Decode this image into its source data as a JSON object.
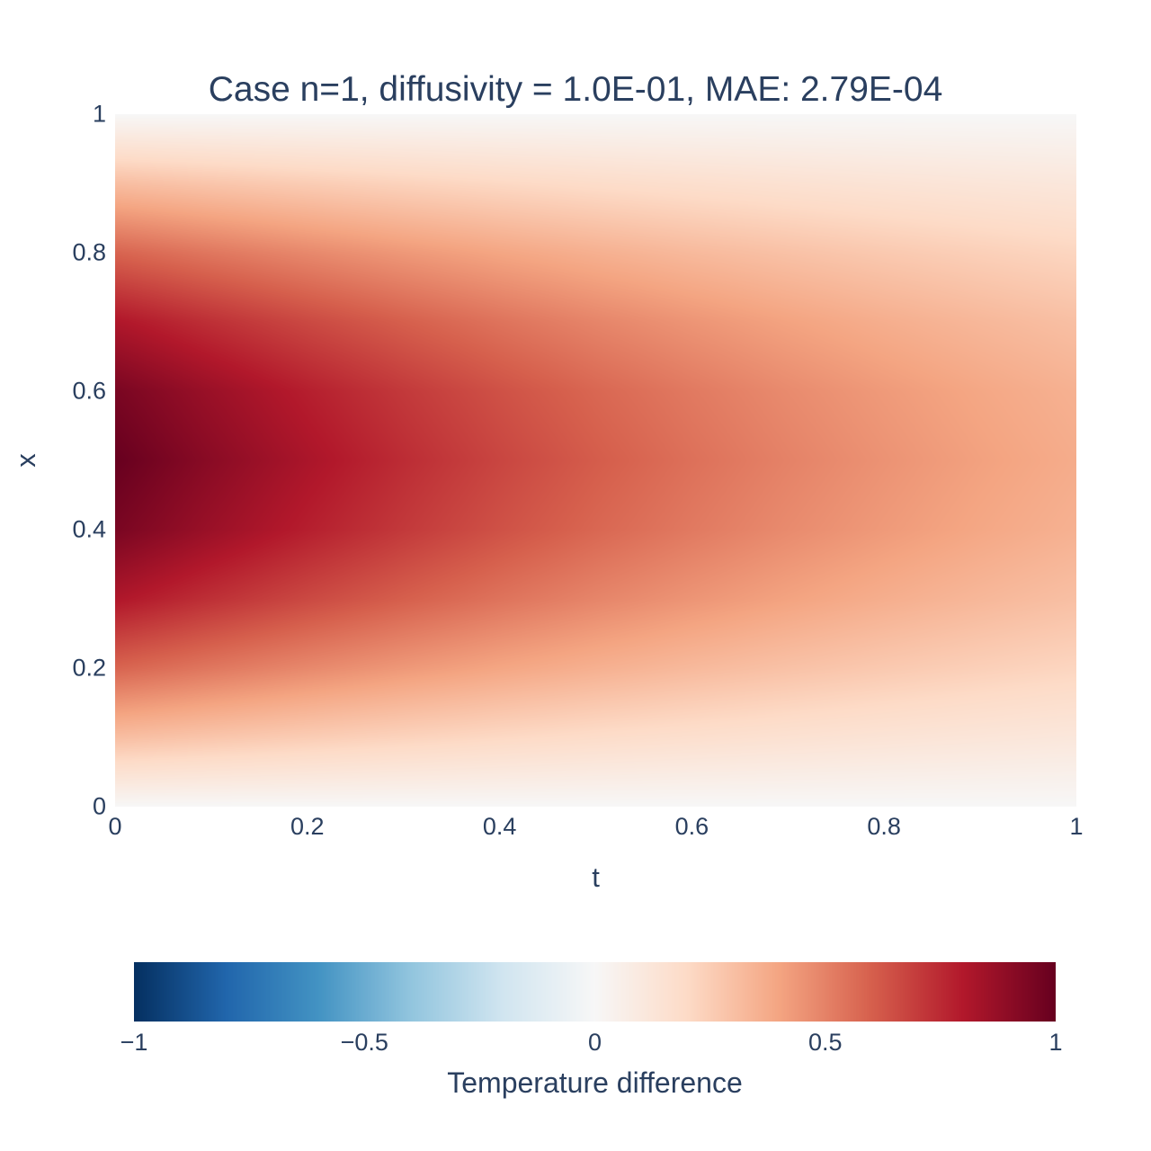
{
  "title": "Case n=1, diffusivity = 1.0E-01, MAE: 2.79E-04",
  "text_color": "#2a3f5f",
  "background_color": "#ffffff",
  "chart_data": {
    "type": "heatmap",
    "title": "Case n=1, diffusivity = 1.0E-01, MAE: 2.79E-04",
    "params": {
      "case_n": "1",
      "diffusivity": "1.0E-01",
      "mae": "2.79E-04"
    },
    "xlabel": "t",
    "ylabel": "x",
    "xlim": [
      0,
      1
    ],
    "ylim": [
      0,
      1
    ],
    "grid": false,
    "x": [
      0,
      0.1,
      0.2,
      0.3,
      0.4,
      0.5,
      0.6,
      0.7,
      0.8,
      0.9,
      1.0
    ],
    "y": [
      0,
      0.1,
      0.2,
      0.3,
      0.4,
      0.5,
      0.6,
      0.7,
      0.8,
      0.9,
      1.0
    ],
    "z": [
      [
        0,
        0,
        0,
        0,
        0,
        0,
        0,
        0,
        0,
        0,
        0
      ],
      [
        0.309,
        0.28,
        0.254,
        0.23,
        0.208,
        0.188,
        0.171,
        0.155,
        0.14,
        0.127,
        0.115
      ],
      [
        0.588,
        0.533,
        0.483,
        0.437,
        0.396,
        0.359,
        0.325,
        0.295,
        0.267,
        0.242,
        0.219
      ],
      [
        0.809,
        0.733,
        0.664,
        0.602,
        0.545,
        0.493,
        0.447,
        0.405,
        0.367,
        0.333,
        0.302
      ],
      [
        0.951,
        0.862,
        0.781,
        0.708,
        0.641,
        0.58,
        0.526,
        0.476,
        0.432,
        0.391,
        0.355
      ],
      [
        1.0,
        0.906,
        0.821,
        0.744,
        0.674,
        0.61,
        0.553,
        0.501,
        0.454,
        0.411,
        0.373
      ],
      [
        0.951,
        0.862,
        0.781,
        0.708,
        0.641,
        0.58,
        0.526,
        0.476,
        0.432,
        0.391,
        0.355
      ],
      [
        0.809,
        0.733,
        0.664,
        0.602,
        0.545,
        0.493,
        0.447,
        0.405,
        0.367,
        0.333,
        0.302
      ],
      [
        0.588,
        0.533,
        0.483,
        0.437,
        0.396,
        0.359,
        0.325,
        0.295,
        0.267,
        0.242,
        0.219
      ],
      [
        0.309,
        0.28,
        0.254,
        0.23,
        0.208,
        0.188,
        0.171,
        0.155,
        0.14,
        0.127,
        0.115
      ],
      [
        0,
        0,
        0,
        0,
        0,
        0,
        0,
        0,
        0,
        0,
        0
      ]
    ],
    "zmin": -1,
    "zmax": 1,
    "x_ticks": [
      {
        "value": 0,
        "label": "0"
      },
      {
        "value": 0.2,
        "label": "0.2"
      },
      {
        "value": 0.4,
        "label": "0.4"
      },
      {
        "value": 0.6,
        "label": "0.6"
      },
      {
        "value": 0.8,
        "label": "0.8"
      },
      {
        "value": 1,
        "label": "1"
      }
    ],
    "y_ticks": [
      {
        "value": 0,
        "label": "0"
      },
      {
        "value": 0.2,
        "label": "0.2"
      },
      {
        "value": 0.4,
        "label": "0.4"
      },
      {
        "value": 0.6,
        "label": "0.6"
      },
      {
        "value": 0.8,
        "label": "0.8"
      },
      {
        "value": 1,
        "label": "1"
      }
    ],
    "colorscale": [
      {
        "value": -1.0,
        "color": "#053061"
      },
      {
        "value": -0.8,
        "color": "#2166ac"
      },
      {
        "value": -0.6,
        "color": "#4393c3"
      },
      {
        "value": -0.4,
        "color": "#92c5de"
      },
      {
        "value": -0.2,
        "color": "#d1e5f0"
      },
      {
        "value": 0.0,
        "color": "#f7f7f7"
      },
      {
        "value": 0.2,
        "color": "#fddbc7"
      },
      {
        "value": 0.4,
        "color": "#f4a582"
      },
      {
        "value": 0.6,
        "color": "#d6604d"
      },
      {
        "value": 0.8,
        "color": "#b2182b"
      },
      {
        "value": 1.0,
        "color": "#67001f"
      }
    ],
    "colorbar": {
      "title": "Temperature difference",
      "orientation": "horizontal",
      "ticks": [
        {
          "value": -1,
          "label": "−1"
        },
        {
          "value": -0.5,
          "label": "−0.5"
        },
        {
          "value": 0,
          "label": "0"
        },
        {
          "value": 0.5,
          "label": "0.5"
        },
        {
          "value": 1,
          "label": "1"
        }
      ]
    }
  }
}
